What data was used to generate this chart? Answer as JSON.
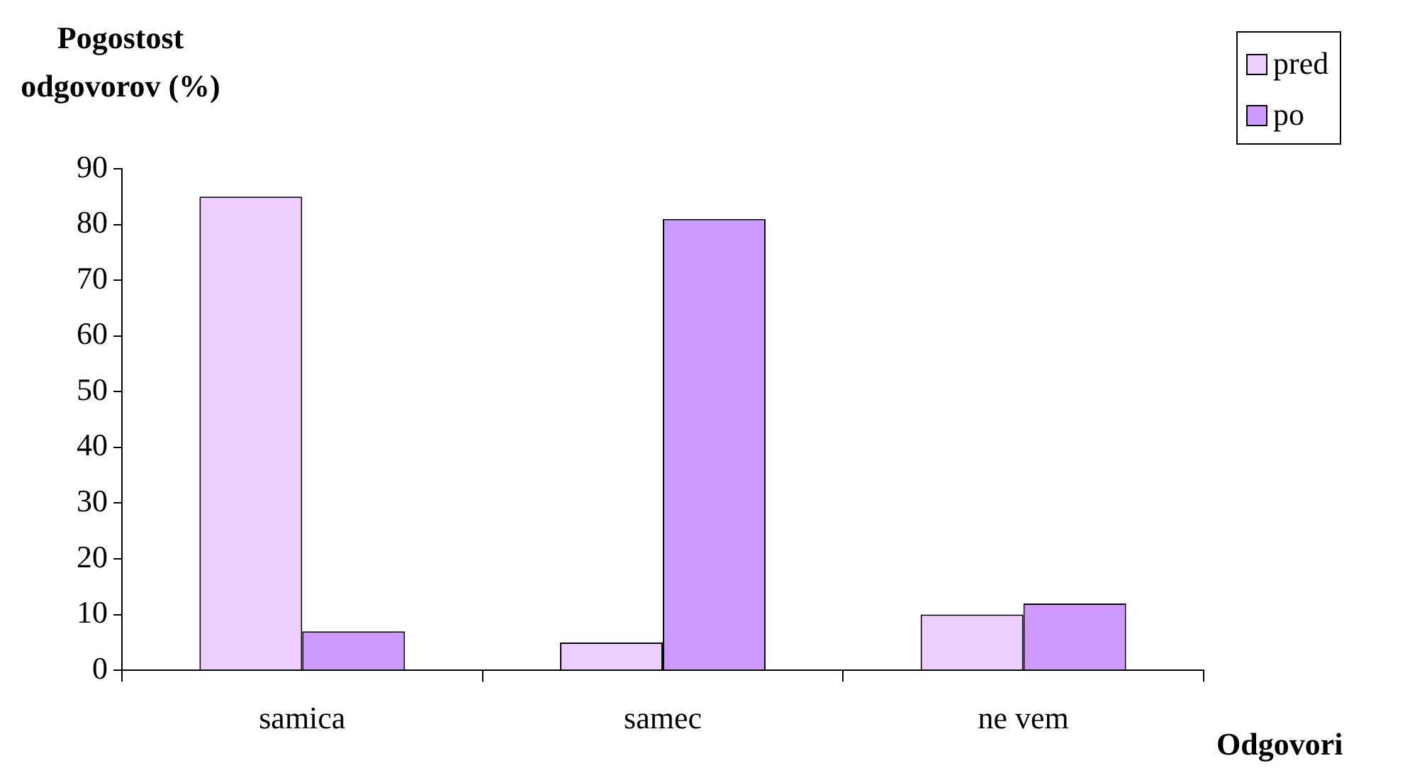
{
  "chart_data": {
    "type": "bar",
    "xlabel": "Odgovori",
    "ylabel": "Pogostost odgovorov (%)",
    "categories": [
      "samica",
      "samec",
      "ne vem"
    ],
    "series": [
      {
        "name": "pred",
        "color": "#eeccff",
        "values": [
          85,
          5,
          10
        ]
      },
      {
        "name": "po",
        "color": "#cc99ff",
        "values": [
          7,
          81,
          12
        ]
      }
    ],
    "ylim": [
      0,
      90
    ],
    "yticks": [
      0,
      10,
      20,
      30,
      40,
      50,
      60,
      70,
      80,
      90
    ],
    "grid": false,
    "legend": "top right"
  }
}
